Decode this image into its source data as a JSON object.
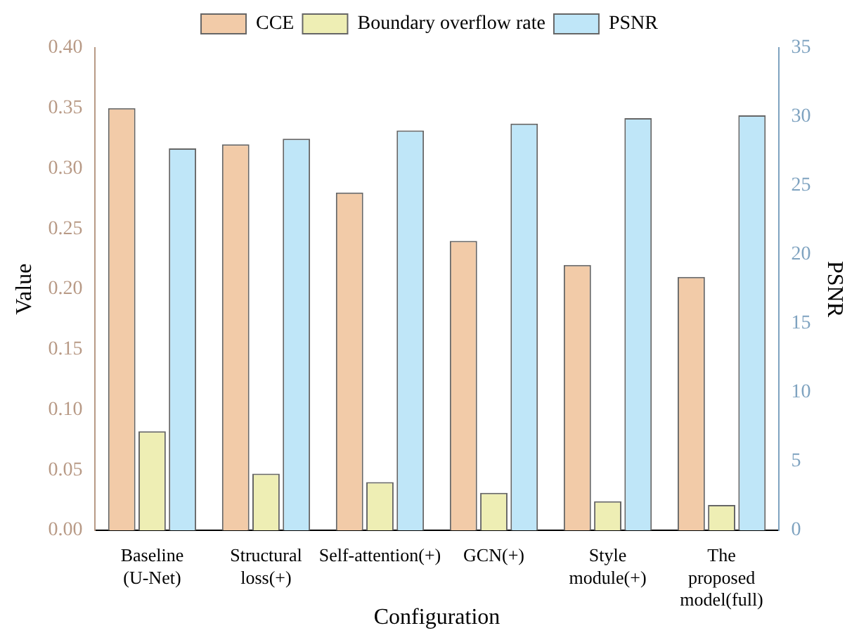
{
  "chart_data": {
    "type": "bar",
    "xlabel": "Configuration",
    "ylabel": "Value",
    "y2label": "PSNR",
    "categories": [
      "Baseline\n(U-Net)",
      "Structural\nloss(+)",
      "Self-attention(+)",
      "GCN(+)",
      "Style\nmodule(+)",
      "The\nproposed\nmodel(full)"
    ],
    "series": [
      {
        "name": "CCE",
        "color": "#f2cba8",
        "values": [
          0.35,
          0.32,
          0.28,
          0.24,
          0.22,
          0.21
        ]
      },
      {
        "name": "Boundary overflow rate",
        "color": "#eeeeb4",
        "values": [
          0.082,
          0.047,
          0.04,
          0.031,
          0.024,
          0.021
        ]
      },
      {
        "name": "PSNR",
        "color": "#bfe6f8",
        "axis": "y2",
        "values": [
          27.7,
          28.4,
          29.0,
          29.5,
          29.9,
          30.1
        ]
      }
    ],
    "ylim": [
      0,
      0.4
    ],
    "yticks": [
      {
        "value": 0,
        "label": "0.00"
      },
      {
        "value": 0.05,
        "label": "0.05"
      },
      {
        "value": 0.1,
        "label": "0.10"
      },
      {
        "value": 0.15,
        "label": "0.15"
      },
      {
        "value": 0.2,
        "label": "0.20"
      },
      {
        "value": 0.25,
        "label": "0.25"
      },
      {
        "value": 0.3,
        "label": "0.30"
      },
      {
        "value": 0.35,
        "label": "0.35"
      },
      {
        "value": 0.4,
        "label": "0.40"
      }
    ],
    "y2lim": [
      0,
      35
    ],
    "y2ticks": [
      0,
      5,
      10,
      15,
      20,
      25,
      30,
      35
    ],
    "legend": "top",
    "grid": false
  }
}
